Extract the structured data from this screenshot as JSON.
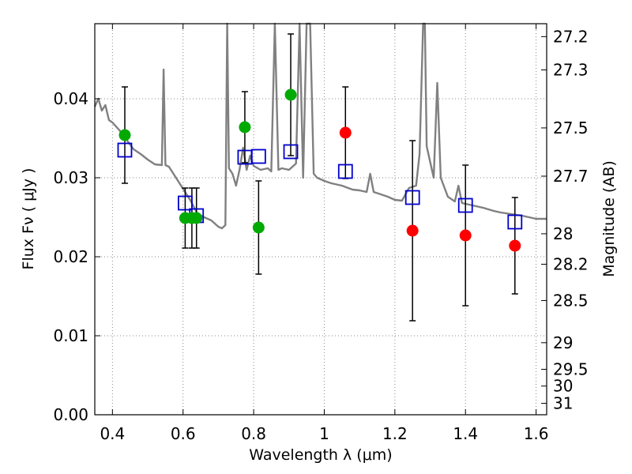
{
  "chart_data": {
    "type": "scatter",
    "xlabel": "Wavelength  λ (μm)",
    "ylabel": "Flux  Fν  ( μJy )",
    "ylabel_right": "Magnitude (AB)",
    "xlim": [
      0.35,
      1.63
    ],
    "ylim": [
      0.0,
      0.0495
    ],
    "grid": true,
    "x_ticks": [
      0.4,
      0.6,
      0.8,
      1.0,
      1.2,
      1.4,
      1.6
    ],
    "x_tick_labels": [
      "0.4",
      "0.6",
      "0.8",
      "1",
      "1.2",
      "1.4",
      "1.6"
    ],
    "y_ticks": [
      0.0,
      0.01,
      0.02,
      0.03,
      0.04
    ],
    "y_tick_labels": [
      "0.00",
      "0.01",
      "0.02",
      "0.03",
      "0.04"
    ],
    "right_ticks": [
      {
        "label": "27.2",
        "mag": 27.2
      },
      {
        "label": "27.3",
        "mag": 27.3
      },
      {
        "label": "27.5",
        "mag": 27.5
      },
      {
        "label": "27.7",
        "mag": 27.7
      },
      {
        "label": "28",
        "mag": 28.0
      },
      {
        "label": "28.2",
        "mag": 28.2
      },
      {
        "label": "28.5",
        "mag": 28.5
      },
      {
        "label": "29",
        "mag": 29.0
      },
      {
        "label": "29.5",
        "mag": 29.5
      },
      {
        "label": "30",
        "mag": 30.0
      },
      {
        "label": "31",
        "mag": 31.0
      }
    ],
    "colors": {
      "model": "#808080",
      "green": "#00aa00",
      "red": "#ff0000",
      "box": "#0000cc",
      "error": "#000000",
      "grid": "#888888"
    },
    "observed": [
      {
        "x": 0.435,
        "y": 0.0354,
        "err": 0.0061,
        "color": "green"
      },
      {
        "x": 0.606,
        "y": 0.0249,
        "err": 0.0038,
        "color": "green"
      },
      {
        "x": 0.625,
        "y": 0.0249,
        "err": 0.0038,
        "color": "green"
      },
      {
        "x": 0.638,
        "y": 0.0249,
        "err": 0.0038,
        "color": "green"
      },
      {
        "x": 0.775,
        "y": 0.0364,
        "err": 0.0045,
        "color": "green"
      },
      {
        "x": 0.814,
        "y": 0.0237,
        "err": 0.0059,
        "color": "green"
      },
      {
        "x": 0.905,
        "y": 0.0405,
        "err": 0.0077,
        "color": "green"
      },
      {
        "x": 1.06,
        "y": 0.0357,
        "err": 0.0058,
        "color": "red"
      },
      {
        "x": 1.25,
        "y": 0.0233,
        "err": 0.0114,
        "color": "red"
      },
      {
        "x": 1.4,
        "y": 0.0227,
        "err": 0.0089,
        "color": "red"
      },
      {
        "x": 1.54,
        "y": 0.0214,
        "err": 0.0061,
        "color": "red"
      }
    ],
    "model_photometry": [
      {
        "x": 0.435,
        "y": 0.0335
      },
      {
        "x": 0.606,
        "y": 0.0268
      },
      {
        "x": 0.638,
        "y": 0.0252
      },
      {
        "x": 0.775,
        "y": 0.0326
      },
      {
        "x": 0.814,
        "y": 0.0327
      },
      {
        "x": 0.905,
        "y": 0.0333
      },
      {
        "x": 1.06,
        "y": 0.0308
      },
      {
        "x": 1.25,
        "y": 0.0275
      },
      {
        "x": 1.4,
        "y": 0.0265
      },
      {
        "x": 1.54,
        "y": 0.0244
      }
    ],
    "model_spectrum": [
      [
        0.35,
        0.039
      ],
      [
        0.36,
        0.04
      ],
      [
        0.37,
        0.0385
      ],
      [
        0.38,
        0.0392
      ],
      [
        0.39,
        0.0373
      ],
      [
        0.4,
        0.037
      ],
      [
        0.42,
        0.036
      ],
      [
        0.44,
        0.0348
      ],
      [
        0.46,
        0.0336
      ],
      [
        0.48,
        0.033
      ],
      [
        0.5,
        0.0323
      ],
      [
        0.52,
        0.0317
      ],
      [
        0.54,
        0.0316
      ],
      [
        0.545,
        0.0437
      ],
      [
        0.55,
        0.0316
      ],
      [
        0.56,
        0.0314
      ],
      [
        0.58,
        0.03
      ],
      [
        0.6,
        0.0286
      ],
      [
        0.62,
        0.0272
      ],
      [
        0.64,
        0.0255
      ],
      [
        0.66,
        0.025
      ],
      [
        0.68,
        0.0246
      ],
      [
        0.7,
        0.0238
      ],
      [
        0.71,
        0.0236
      ],
      [
        0.72,
        0.024
      ],
      [
        0.725,
        0.0495
      ],
      [
        0.73,
        0.0312
      ],
      [
        0.74,
        0.0305
      ],
      [
        0.75,
        0.029
      ],
      [
        0.76,
        0.031
      ],
      [
        0.77,
        0.0338
      ],
      [
        0.78,
        0.031
      ],
      [
        0.79,
        0.0328
      ],
      [
        0.8,
        0.0315
      ],
      [
        0.82,
        0.031
      ],
      [
        0.84,
        0.0312
      ],
      [
        0.85,
        0.0308
      ],
      [
        0.86,
        0.0495
      ],
      [
        0.87,
        0.031
      ],
      [
        0.88,
        0.0312
      ],
      [
        0.9,
        0.031
      ],
      [
        0.92,
        0.0318
      ],
      [
        0.93,
        0.0495
      ],
      [
        0.94,
        0.03
      ],
      [
        0.95,
        0.0495
      ],
      [
        0.96,
        0.0495
      ],
      [
        0.97,
        0.0305
      ],
      [
        0.98,
        0.03
      ],
      [
        1.0,
        0.0296
      ],
      [
        1.02,
        0.0293
      ],
      [
        1.05,
        0.029
      ],
      [
        1.08,
        0.0285
      ],
      [
        1.1,
        0.0284
      ],
      [
        1.12,
        0.0282
      ],
      [
        1.13,
        0.0305
      ],
      [
        1.14,
        0.0282
      ],
      [
        1.16,
        0.0279
      ],
      [
        1.18,
        0.0276
      ],
      [
        1.2,
        0.0272
      ],
      [
        1.22,
        0.0271
      ],
      [
        1.24,
        0.0287
      ],
      [
        1.26,
        0.029
      ],
      [
        1.27,
        0.033
      ],
      [
        1.28,
        0.0495
      ],
      [
        1.285,
        0.0495
      ],
      [
        1.29,
        0.034
      ],
      [
        1.3,
        0.032
      ],
      [
        1.31,
        0.03
      ],
      [
        1.32,
        0.042
      ],
      [
        1.33,
        0.03
      ],
      [
        1.35,
        0.0276
      ],
      [
        1.37,
        0.027
      ],
      [
        1.38,
        0.029
      ],
      [
        1.39,
        0.0268
      ],
      [
        1.42,
        0.0265
      ],
      [
        1.45,
        0.0262
      ],
      [
        1.48,
        0.0258
      ],
      [
        1.5,
        0.0256
      ],
      [
        1.53,
        0.0254
      ],
      [
        1.56,
        0.0252
      ],
      [
        1.58,
        0.025
      ],
      [
        1.6,
        0.0248
      ],
      [
        1.63,
        0.0248
      ]
    ]
  }
}
